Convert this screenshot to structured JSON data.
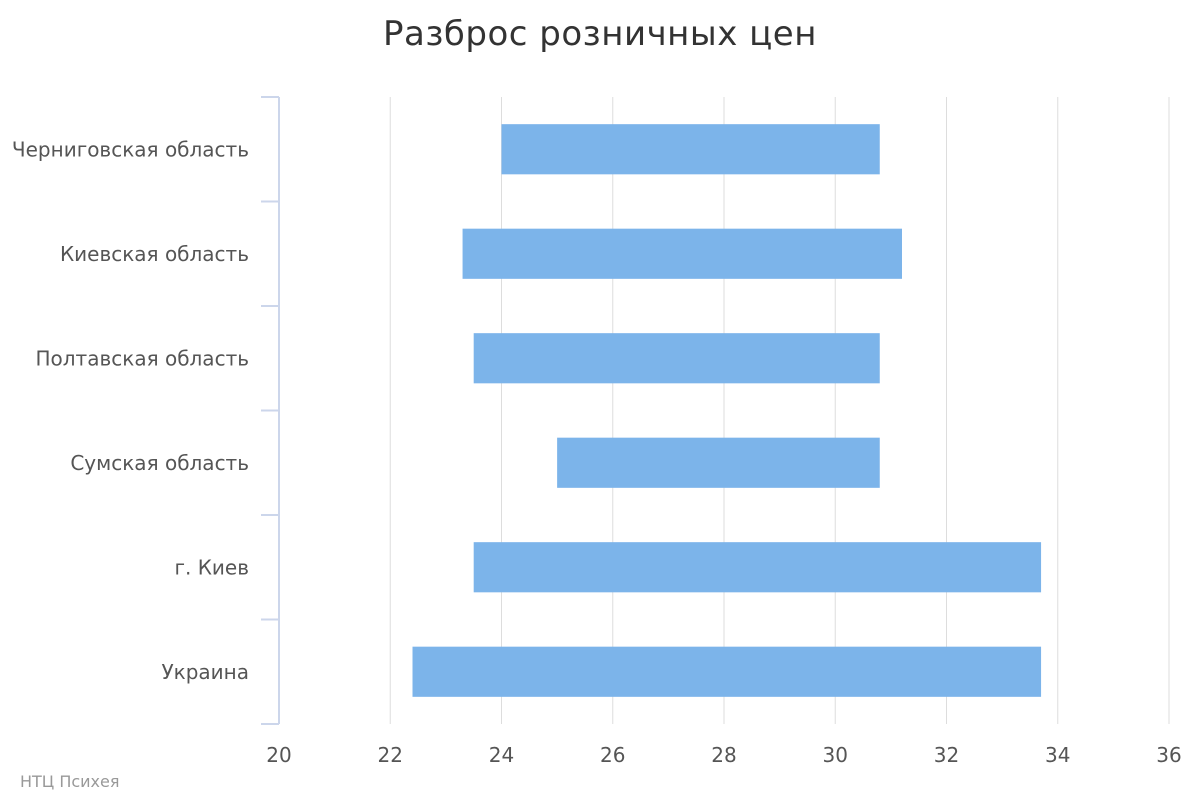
{
  "chart_data": {
    "type": "bar",
    "orientation": "horizontal",
    "subtype": "floating-range",
    "title": "Разброс розничных цен",
    "categories": [
      "Черниговская область",
      "Киевская область",
      "Полтавская область",
      "Сумская область",
      "г. Киев",
      "Украина"
    ],
    "series": [
      {
        "low": [
          24.0,
          23.3,
          23.5,
          25.0,
          23.5,
          22.4
        ],
        "high": [
          30.8,
          31.2,
          30.8,
          30.8,
          33.7,
          33.7
        ]
      }
    ],
    "xlim": [
      20,
      36
    ],
    "xticks": [
      20,
      22,
      24,
      26,
      28,
      30,
      32,
      34,
      36
    ],
    "xlabel": "",
    "ylabel": "",
    "grid": "vertical",
    "bar_color": "#7cb4ea"
  },
  "credit": "НТЦ Психея"
}
